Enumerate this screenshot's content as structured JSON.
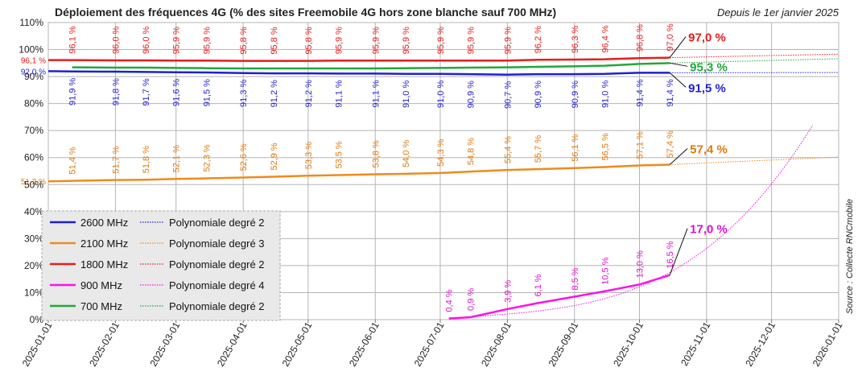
{
  "chart_data": {
    "type": "line",
    "title": "Déploiement des fréquences 4G (% des sites Freemobile 4G hors zone blanche sauf 700 MHz)",
    "subtitle": "Depuis le 1er janvier 2025",
    "source": "Source : Collecte RNCmobile",
    "xlabel": "",
    "ylabel": "",
    "x_ticks": [
      "2025-01-01",
      "2025-02-01",
      "2025-03-01",
      "2025-04-01",
      "2025-05-01",
      "2025-06-01",
      "2025-07-01",
      "2025-08-01",
      "2025-09-01",
      "2025-10-01",
      "2025-11-01",
      "2025-12-01",
      "2026-01-01"
    ],
    "y_ticks": [
      "0%",
      "10%",
      "20%",
      "30%",
      "40%",
      "50%",
      "60%",
      "70%",
      "80%",
      "90%",
      "100%",
      "110%"
    ],
    "ylim": [
      0,
      110
    ],
    "grid": true,
    "legend_position": "bottom-left",
    "point_dates": [
      "2025-01-12",
      "2025-02-01",
      "2025-02-15",
      "2025-03-01",
      "2025-03-15",
      "2025-04-01",
      "2025-04-15",
      "2025-05-01",
      "2025-05-15",
      "2025-06-01",
      "2025-06-15",
      "2025-07-01",
      "2025-07-15",
      "2025-08-01",
      "2025-08-15",
      "2025-09-01",
      "2025-09-15",
      "2025-10-01",
      "2025-10-15"
    ],
    "series": [
      {
        "name": "2600 MHz",
        "color": "#1f1fd6",
        "label_color": "#1f1fd6",
        "start_value": 92.0,
        "start_label": "92,0 %",
        "values": [
          91.9,
          91.8,
          91.7,
          91.6,
          91.5,
          91.3,
          91.2,
          91.2,
          91.1,
          91.1,
          91.0,
          91.0,
          90.9,
          90.7,
          90.9,
          90.9,
          91.0,
          91.4,
          91.4
        ],
        "labels": [
          "91,9 %",
          "91,8 %",
          "91,7 %",
          "91,6 %",
          "91,5 %",
          "91,3 %",
          "91,2 %",
          "91,2 %",
          "91,1 %",
          "91,1 %",
          "91,0 %",
          "91,0 %",
          "90,9 %",
          "90,7 %",
          "90,9 %",
          "90,9 %",
          "91,0 %",
          "91,4 %",
          "91,4 %"
        ],
        "label_side": "below",
        "end_value": 91.5,
        "end_label": "91,5 %",
        "trend_name": "Polynomiale degré 2",
        "trend_end": 91.5
      },
      {
        "name": "2100 MHz",
        "color": "#f08a1c",
        "label_color": "#e07a10",
        "start_value": 51.2,
        "start_label": "51,2 %",
        "values": [
          51.4,
          51.7,
          51.8,
          52.1,
          52.3,
          52.6,
          52.9,
          53.3,
          53.5,
          53.8,
          54.0,
          54.3,
          54.8,
          55.4,
          55.7,
          56.1,
          56.5,
          57.1,
          57.4
        ],
        "labels": [
          "51,4 %",
          "51,7 %",
          "51,8 %",
          "52,1 %",
          "52,3 %",
          "52,6 %",
          "52,9 %",
          "53,3 %",
          "53,5 %",
          "53,8 %",
          "54,0 %",
          "54,3 %",
          "54,8 %",
          "55,4 %",
          "55,7 %",
          "56,1 %",
          "56,5 %",
          "57,1 %",
          "57,4 %"
        ],
        "label_side": "above",
        "end_value": 57.4,
        "end_label": "57,4 %",
        "trend_name": "Polynomiale degré 3",
        "trend_end": 60.2
      },
      {
        "name": "1800 MHz",
        "color": "#e81c1c",
        "label_color": "#e81c1c",
        "start_value": 96.1,
        "start_label": "96,1 %",
        "values": [
          96.1,
          96.0,
          96.0,
          95.9,
          95.9,
          95.8,
          95.8,
          95.8,
          95.9,
          95.9,
          95.9,
          95.9,
          95.9,
          95.9,
          96.2,
          96.3,
          96.4,
          96.8,
          97.0
        ],
        "labels": [
          "96,1 %",
          "96,0 %",
          "96,0 %",
          "95,9 %",
          "95,9 %",
          "95,8 %",
          "95,8 %",
          "95,8 %",
          "95,9 %",
          "95,9 %",
          "95,9 %",
          "95,9 %",
          "95,9 %",
          "95,9 %",
          "96,2 %",
          "96,3 %",
          "96,4 %",
          "96,8 %",
          "97,0 %"
        ],
        "label_side": "above",
        "end_value": 97.0,
        "end_label": "97,0 %",
        "trend_name": "Polynomiale degré 2",
        "trend_end": 98.3
      },
      {
        "name": "900 MHz",
        "color": "#ff10e8",
        "label_color": "#e010d0",
        "point_dates": [
          "2025-07-05",
          "2025-07-15",
          "2025-08-01",
          "2025-08-15",
          "2025-09-01",
          "2025-09-15",
          "2025-10-01",
          "2025-10-15"
        ],
        "values": [
          0.4,
          0.9,
          3.9,
          6.1,
          8.5,
          10.5,
          13.0,
          16.5
        ],
        "labels": [
          "0,4 %",
          "0,9 %",
          "3,9 %",
          "6,1 %",
          "8,5 %",
          "10,5 %",
          "13,0 %",
          "16,5 %"
        ],
        "label_side": "above",
        "end_value": 17.0,
        "end_label": "17,0 %",
        "trend_name": "Polynomiale degré 4",
        "trend_end": 72.0
      },
      {
        "name": "700 MHz",
        "color": "#22a838",
        "label_color": "#22a838",
        "values": [
          93.4,
          93.3,
          93.3,
          93.2,
          93.1,
          93.0,
          93.0,
          93.0,
          93.0,
          93.0,
          93.1,
          93.2,
          93.3,
          93.4,
          93.6,
          93.8,
          94.0,
          94.7,
          95.0
        ],
        "end_value": 95.3,
        "end_label": "95,3 %",
        "trend_name": "Polynomiale degré 2",
        "trend_end": 96.6
      }
    ]
  }
}
